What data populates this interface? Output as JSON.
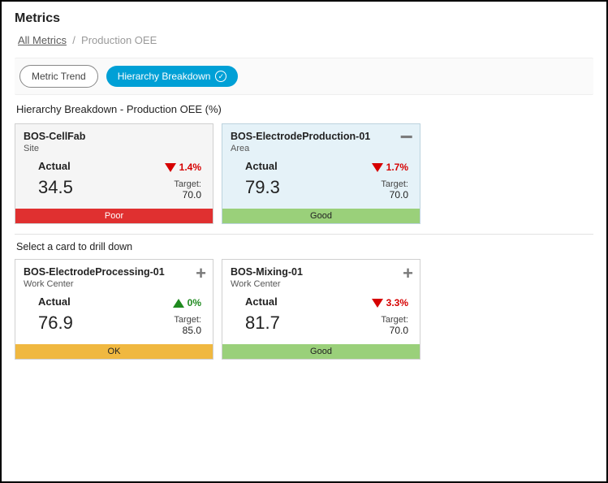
{
  "page": {
    "title": "Metrics"
  },
  "breadcrumb": {
    "root": "All Metrics",
    "sep": "/",
    "current": "Production OEE"
  },
  "tabs": {
    "metric_trend": "Metric Trend",
    "hierarchy": "Hierarchy Breakdown"
  },
  "subheader": "Hierarchy Breakdown   -   Production OEE (%)",
  "drill_label": "Select a card to drill down",
  "top_cards": [
    {
      "title": "BOS-CellFab",
      "subtitle": "Site",
      "actual_label": "Actual",
      "actual_value": "34.5",
      "trend_dir": "down",
      "trend_value": "1.4%",
      "target_label": "Target:",
      "target_value": "70.0",
      "status_text": "Poor",
      "status_class": "status-poor",
      "card_class": "dim",
      "corner": ""
    },
    {
      "title": "BOS-ElectrodeProduction-01",
      "subtitle": "Area",
      "actual_label": "Actual",
      "actual_value": "79.3",
      "trend_dir": "down",
      "trend_value": "1.7%",
      "target_label": "Target:",
      "target_value": "70.0",
      "status_text": "Good",
      "status_class": "status-good",
      "card_class": "selected",
      "corner": "minus"
    }
  ],
  "bottom_cards": [
    {
      "title": "BOS-ElectrodeProcessing-01",
      "subtitle": "Work Center",
      "actual_label": "Actual",
      "actual_value": "76.9",
      "trend_dir": "up",
      "trend_value": "0%",
      "target_label": "Target:",
      "target_value": "85.0",
      "status_text": "OK",
      "status_class": "status-ok",
      "card_class": "",
      "corner": "plus"
    },
    {
      "title": "BOS-Mixing-01",
      "subtitle": "Work Center",
      "actual_label": "Actual",
      "actual_value": "81.7",
      "trend_dir": "down",
      "trend_value": "3.3%",
      "target_label": "Target:",
      "target_value": "70.0",
      "status_text": "Good",
      "status_class": "status-good",
      "card_class": "",
      "corner": "plus"
    }
  ]
}
